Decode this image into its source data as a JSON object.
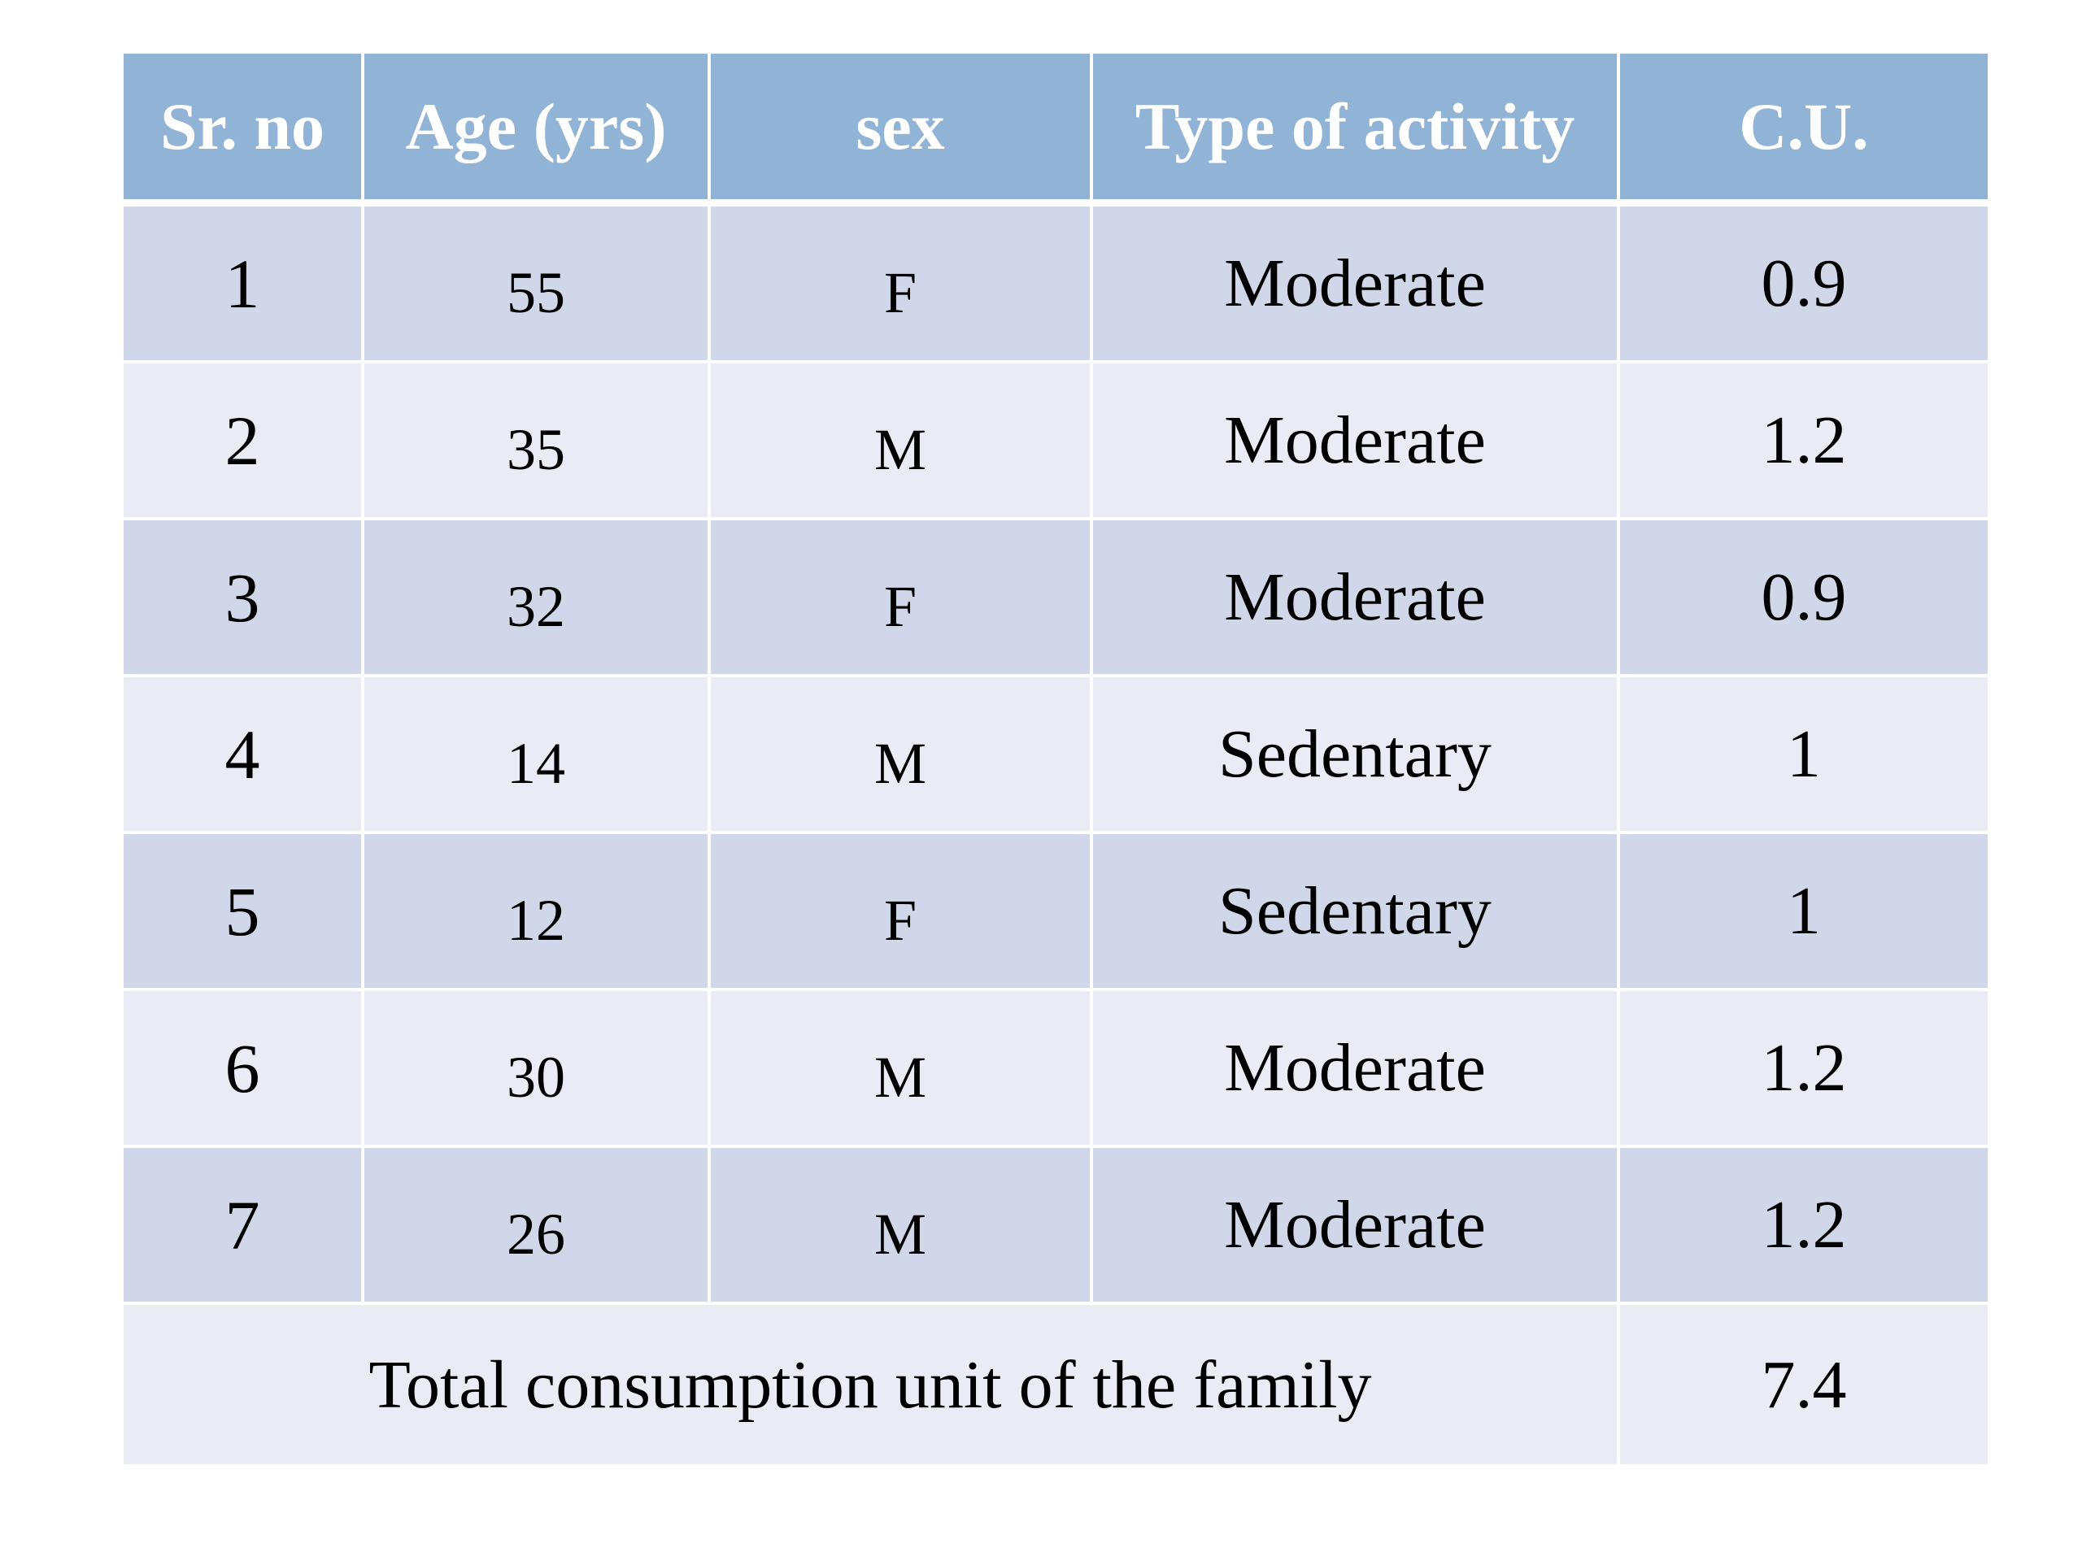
{
  "table": {
    "headers": {
      "sr_no": "Sr. no",
      "age": "Age (yrs)",
      "sex": "sex",
      "activity": "Type of activity",
      "cu": "C.U."
    },
    "rows": [
      {
        "sr": "1",
        "age": "55",
        "sex": "F",
        "activity": "Moderate",
        "cu": "0.9"
      },
      {
        "sr": "2",
        "age": "35",
        "sex": "M",
        "activity": "Moderate",
        "cu": "1.2"
      },
      {
        "sr": "3",
        "age": "32",
        "sex": "F",
        "activity": "Moderate",
        "cu": "0.9"
      },
      {
        "sr": "4",
        "age": "14",
        "sex": "M",
        "activity": "Sedentary",
        "cu": "1"
      },
      {
        "sr": "5",
        "age": "12",
        "sex": "F",
        "activity": "Sedentary",
        "cu": "1"
      },
      {
        "sr": "6",
        "age": "30",
        "sex": "M",
        "activity": "Moderate",
        "cu": "1.2"
      },
      {
        "sr": "7",
        "age": "26",
        "sex": "M",
        "activity": "Moderate",
        "cu": "1.2"
      }
    ],
    "total": {
      "label": "Total consumption unit of the family",
      "value": "7.4"
    }
  },
  "colors": {
    "header_bg": "#91b3d5",
    "row_dark": "#d0d7e8",
    "row_light": "#e9ecf4"
  }
}
